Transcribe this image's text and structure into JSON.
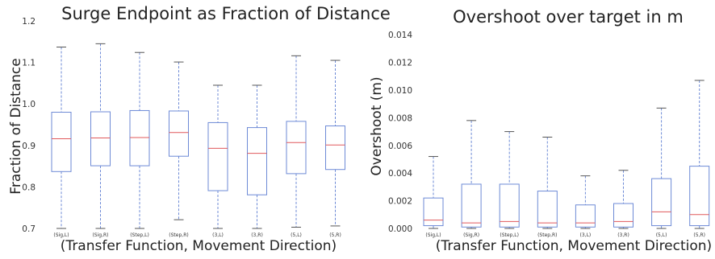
{
  "chart_data": [
    {
      "type": "box",
      "title": "Surge Endpoint as Fraction of Distance",
      "xlabel": "(Transfer Function, Movement Direction)",
      "ylabel": "Fraction of Distance",
      "ylim": [
        0.7,
        1.2
      ],
      "yticks": [
        "0.7",
        "0.8",
        "0.9",
        "1.0",
        "1.1",
        "1.2"
      ],
      "grid": false,
      "categories": [
        "(Sig,L)",
        "(Sig,R)",
        "(Step,L)",
        "(Step,R)",
        "(3,L)",
        "(3,R)",
        "(5,L)",
        "(5,R)"
      ],
      "boxes": [
        {
          "whislo": 0.7,
          "q1": 0.837,
          "med": 0.916,
          "q3": 0.98,
          "whishi": 1.137
        },
        {
          "whislo": 0.7,
          "q1": 0.851,
          "med": 0.918,
          "q3": 0.981,
          "whishi": 1.145
        },
        {
          "whislo": 0.7,
          "q1": 0.851,
          "med": 0.919,
          "q3": 0.984,
          "whishi": 1.124
        },
        {
          "whislo": 0.721,
          "q1": 0.874,
          "med": 0.931,
          "q3": 0.983,
          "whishi": 1.101
        },
        {
          "whislo": 0.7,
          "q1": 0.791,
          "med": 0.893,
          "q3": 0.955,
          "whishi": 1.045
        },
        {
          "whislo": 0.7,
          "q1": 0.781,
          "med": 0.881,
          "q3": 0.943,
          "whishi": 1.045
        },
        {
          "whislo": 0.703,
          "q1": 0.832,
          "med": 0.907,
          "q3": 0.958,
          "whishi": 1.116
        },
        {
          "whislo": 0.706,
          "q1": 0.842,
          "med": 0.901,
          "q3": 0.947,
          "whishi": 1.105
        }
      ],
      "colors": {
        "box": "#6d8ad6",
        "median": "#e0585b",
        "whisker": "#6d8ad6",
        "cap": "#555555"
      }
    },
    {
      "type": "box",
      "title": "Overshoot over target in m",
      "xlabel": "(Transfer Function, Movement Direction)",
      "ylabel": "Overshoot (m)",
      "ylim": [
        0.0,
        0.015
      ],
      "yticks": [
        "0.000",
        "0.002",
        "0.004",
        "0.006",
        "0.008",
        "0.010",
        "0.012",
        "0.014"
      ],
      "grid": false,
      "categories": [
        "(Sig,L)",
        "(Sig,R)",
        "(Step,L)",
        "(Step,R)",
        "(3,L)",
        "(3,R)",
        "(5,L)",
        "(5,R)"
      ],
      "boxes": [
        {
          "whislo": 0.0,
          "q1": 0.0002,
          "med": 0.0006,
          "q3": 0.0022,
          "whishi": 0.0052
        },
        {
          "whislo": 0.0,
          "q1": 0.0001,
          "med": 0.0004,
          "q3": 0.0032,
          "whishi": 0.0078
        },
        {
          "whislo": 0.0,
          "q1": 0.0001,
          "med": 0.0005,
          "q3": 0.0032,
          "whishi": 0.007
        },
        {
          "whislo": 0.0,
          "q1": 0.0001,
          "med": 0.0004,
          "q3": 0.0027,
          "whishi": 0.0066
        },
        {
          "whislo": 0.0,
          "q1": 0.0001,
          "med": 0.0004,
          "q3": 0.0017,
          "whishi": 0.0038
        },
        {
          "whislo": 0.0,
          "q1": 0.0001,
          "med": 0.0005,
          "q3": 0.0018,
          "whishi": 0.0042
        },
        {
          "whislo": 0.0,
          "q1": 0.0002,
          "med": 0.0012,
          "q3": 0.0036,
          "whishi": 0.0087
        },
        {
          "whislo": 0.0,
          "q1": 0.0002,
          "med": 0.001,
          "q3": 0.0045,
          "whishi": 0.0107
        }
      ],
      "colors": {
        "box": "#6d8ad6",
        "median": "#e0585b",
        "whisker": "#6d8ad6",
        "cap": "#555555"
      }
    }
  ]
}
